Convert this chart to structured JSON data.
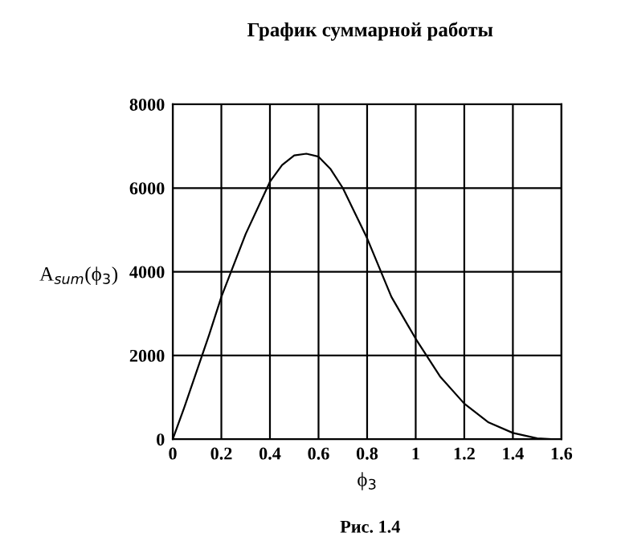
{
  "chart_data": {
    "type": "line",
    "title": "График суммарной работы",
    "xlabel": "ϕ$_{3}$",
    "ylabel": "A$_{sum}$(ϕ$_{3}$)",
    "annotations": [
      "Рис. 1.4"
    ],
    "x": [
      0,
      0.05,
      0.1,
      0.15,
      0.2,
      0.3,
      0.4,
      0.45,
      0.5,
      0.55,
      0.6,
      0.65,
      0.7,
      0.8,
      0.9,
      1.0,
      1.1,
      1.2,
      1.3,
      1.4,
      1.5,
      1.57
    ],
    "series": [
      {
        "color": "#000000",
        "values": [
          0,
          800,
          1650,
          2500,
          3400,
          4900,
          6150,
          6550,
          6780,
          6820,
          6750,
          6450,
          6000,
          4800,
          3400,
          2400,
          1500,
          850,
          400,
          150,
          20,
          0
        ]
      }
    ],
    "xlim": [
      0,
      1.6
    ],
    "ylim": [
      0,
      8000
    ],
    "xticks": [
      0,
      0.2,
      0.4,
      0.6,
      0.8,
      1,
      1.2,
      1.4,
      1.6
    ],
    "yticks": [
      0,
      2000,
      4000,
      6000,
      8000
    ],
    "grid": true,
    "legend": false
  }
}
